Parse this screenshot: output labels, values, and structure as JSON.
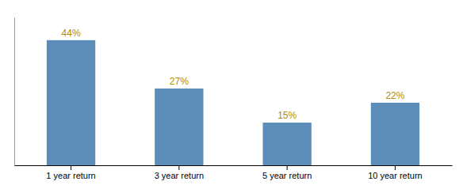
{
  "chart_data": {
    "type": "bar",
    "categories": [
      "1 year return",
      "3 year return",
      "5 year return",
      "10 year return"
    ],
    "values": [
      44,
      27,
      15,
      22
    ],
    "value_labels": [
      "44%",
      "27%",
      "15%",
      "22%"
    ],
    "data_labels": true,
    "color": "#5b8db8",
    "ylim": [
      0,
      52
    ],
    "tick_labels": "x",
    "grid": false
  }
}
